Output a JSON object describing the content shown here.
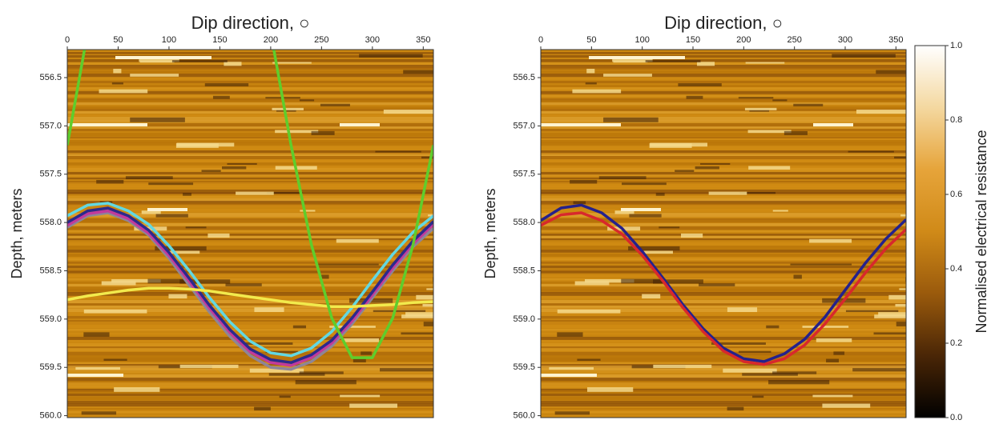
{
  "chart_data": [
    {
      "type": "line",
      "title": "Dip direction, ○",
      "ylabel": "Depth, meters",
      "xaxis_position": "top",
      "y_inverted": true,
      "xlim": [
        0,
        360
      ],
      "xticks": [
        0,
        50,
        100,
        150,
        200,
        250,
        300,
        350
      ],
      "ylim": [
        556.21,
        560.02
      ],
      "yticks": [
        556.5,
        {
          "value": 557,
          "label": "557.0"
        },
        557.5,
        {
          "value": 558,
          "label": "558.0"
        },
        558.5,
        {
          "value": 559,
          "label": "559.0"
        },
        559.5,
        {
          "value": 560,
          "label": "560.0"
        }
      ],
      "x": [
        0,
        20,
        40,
        60,
        80,
        100,
        120,
        140,
        160,
        180,
        200,
        220,
        240,
        260,
        280,
        300,
        320,
        340,
        360
      ],
      "series": [
        {
          "color": "#8d8598",
          "values": [
            558.05,
            557.93,
            557.9,
            557.98,
            558.13,
            558.37,
            558.65,
            558.93,
            559.18,
            559.38,
            559.5,
            559.52,
            559.44,
            559.28,
            559.05,
            558.78,
            558.5,
            558.25,
            558.06
          ]
        },
        {
          "color": "#c23a9c",
          "values": [
            558.03,
            557.91,
            557.88,
            557.96,
            558.11,
            558.34,
            558.61,
            558.89,
            559.14,
            559.34,
            559.45,
            559.48,
            559.4,
            559.25,
            559.02,
            558.75,
            558.47,
            558.22,
            558.02
          ]
        },
        {
          "color": "#2b2a8c",
          "values": [
            558.0,
            557.88,
            557.85,
            557.93,
            558.08,
            558.31,
            558.58,
            558.86,
            559.11,
            559.31,
            559.42,
            559.45,
            559.37,
            559.22,
            558.99,
            558.72,
            558.44,
            558.19,
            557.99
          ]
        },
        {
          "color": "#62d8e2",
          "values": [
            557.93,
            557.82,
            557.8,
            557.88,
            558.02,
            558.24,
            558.5,
            558.78,
            559.03,
            559.23,
            559.35,
            559.38,
            559.3,
            559.13,
            558.88,
            558.6,
            558.33,
            558.1,
            557.93
          ]
        },
        {
          "color": "#f2ea4c",
          "values": [
            558.8,
            558.76,
            558.73,
            558.7,
            558.68,
            558.68,
            558.69,
            558.71,
            558.74,
            558.77,
            558.8,
            558.83,
            558.85,
            558.87,
            558.87,
            558.86,
            558.85,
            558.83,
            558.82
          ]
        },
        {
          "color": "#5fcd2c",
          "values": [
            557.2,
            556.03,
            null,
            null,
            null,
            null,
            null,
            null,
            null,
            null,
            556.03,
            557.2,
            558.23,
            558.99,
            559.4,
            559.4,
            558.99,
            558.23,
            557.2
          ]
        }
      ]
    },
    {
      "type": "line",
      "title": "Dip direction, ○",
      "ylabel": "Depth, meters",
      "xaxis_position": "top",
      "y_inverted": true,
      "xlim": [
        0,
        360
      ],
      "xticks": [
        0,
        50,
        100,
        150,
        200,
        250,
        300,
        350
      ],
      "ylim": [
        556.21,
        560.02
      ],
      "yticks": [
        556.5,
        {
          "value": 557,
          "label": "557.0"
        },
        557.5,
        {
          "value": 558,
          "label": "558.0"
        },
        558.5,
        {
          "value": 559,
          "label": "559.0"
        },
        559.5,
        {
          "value": 560,
          "label": "560.0"
        }
      ],
      "x": [
        0,
        20,
        40,
        60,
        80,
        100,
        120,
        140,
        160,
        180,
        200,
        220,
        240,
        260,
        280,
        300,
        320,
        340,
        360
      ],
      "series": [
        {
          "color": "#24218c",
          "values": [
            557.98,
            557.85,
            557.82,
            557.9,
            558.06,
            558.3,
            558.57,
            558.85,
            559.1,
            559.3,
            559.41,
            559.44,
            559.36,
            559.21,
            558.98,
            558.7,
            558.42,
            558.17,
            557.97
          ]
        },
        {
          "color": "#d8282c",
          "values": [
            558.03,
            557.92,
            557.9,
            557.98,
            558.12,
            558.34,
            558.6,
            558.88,
            559.13,
            559.33,
            559.44,
            559.47,
            559.41,
            559.27,
            559.05,
            558.79,
            558.52,
            558.27,
            558.07
          ]
        }
      ]
    }
  ],
  "colorbar": {
    "label": "Normalised electrical resistance",
    "lim": [
      0,
      1
    ],
    "ticks": [
      {
        "value": 0,
        "label": "0.0"
      },
      0.2,
      0.4,
      0.6,
      0.8,
      {
        "value": 1,
        "label": "1.0"
      }
    ],
    "colors": [
      "#000000",
      "#4a2606",
      "#9a5a0c",
      "#d08a18",
      "#e6a43a",
      "#f4d8a0",
      "#ffffff"
    ]
  }
}
